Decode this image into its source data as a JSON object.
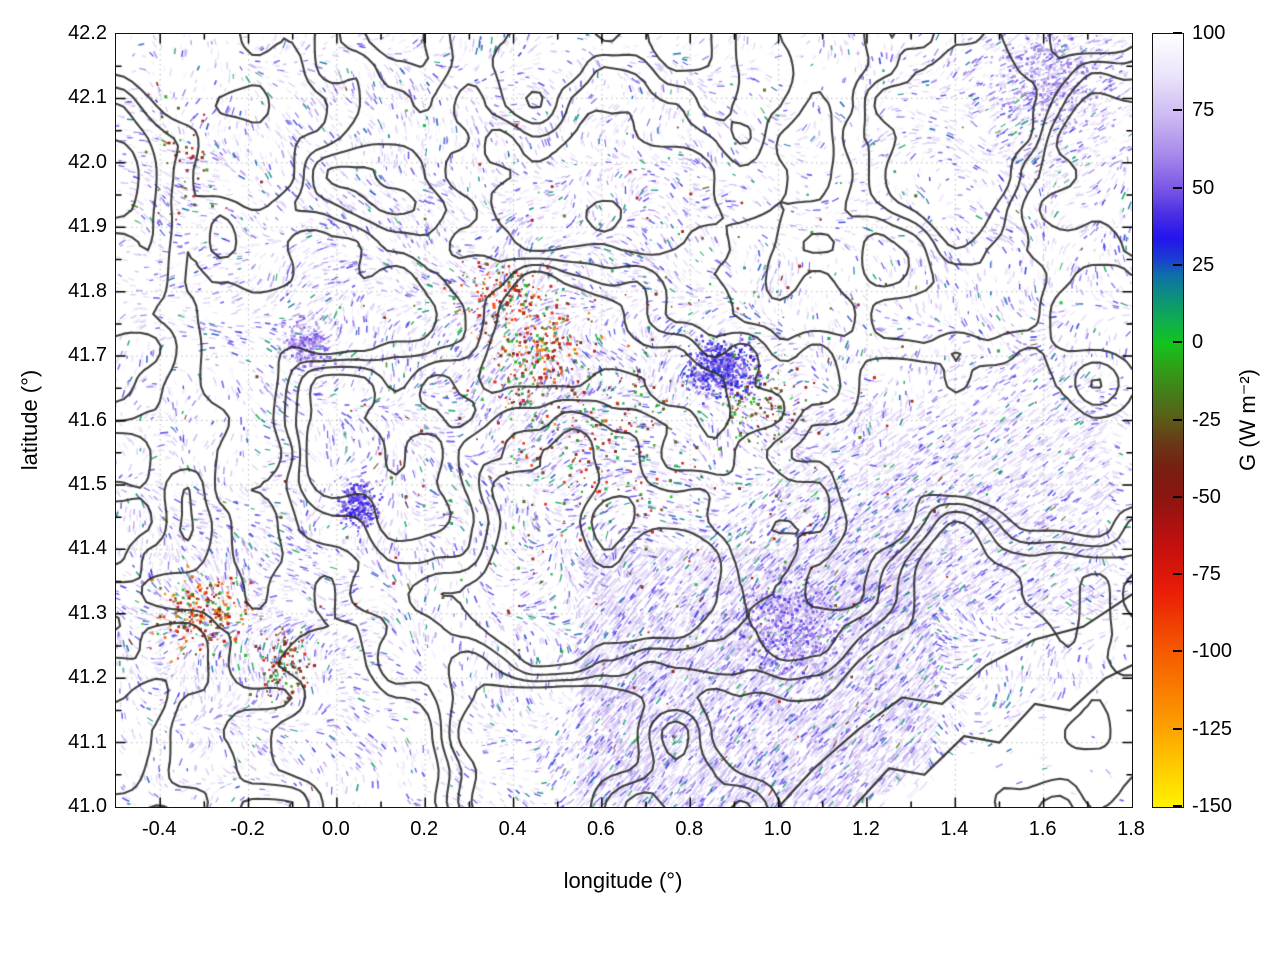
{
  "chart_data": {
    "type": "heatmap",
    "title": "",
    "xlabel": "longitude (°)",
    "ylabel": "latitude (°)",
    "x_range": [
      -0.5,
      1.8
    ],
    "y_range": [
      41.0,
      42.2
    ],
    "x_ticks": [
      -0.4,
      -0.2,
      0.0,
      0.2,
      0.4,
      0.6,
      0.8,
      1.0,
      1.2,
      1.4,
      1.6,
      1.8
    ],
    "x_tick_labels": [
      "-0.4",
      "-0.2",
      "0.0",
      "0.2",
      "0.4",
      "0.6",
      "0.8",
      "1.0",
      "1.2",
      "1.4",
      "1.6",
      "1.8"
    ],
    "y_ticks": [
      41.0,
      41.1,
      41.2,
      41.3,
      41.4,
      41.5,
      41.6,
      41.7,
      41.8,
      41.9,
      42.0,
      42.1,
      42.2
    ],
    "y_tick_labels": [
      "41.0",
      "41.1",
      "41.2",
      "41.3",
      "41.4",
      "41.5",
      "41.6",
      "41.7",
      "41.8",
      "41.9",
      "42.0",
      "42.1",
      "42.2"
    ],
    "grid": true,
    "colorbar": {
      "label": "G (W m⁻²)",
      "range": [
        -150,
        100
      ],
      "ticks": [
        100,
        75,
        50,
        25,
        0,
        -25,
        -50,
        -75,
        -100,
        -125,
        -150
      ],
      "tick_labels": [
        "100",
        "75",
        "50",
        "25",
        "0",
        "-25",
        "-50",
        "-75",
        "-100",
        "-125",
        "-150"
      ],
      "palette": [
        [
          100,
          "#ffffff"
        ],
        [
          86,
          "#eae3fa"
        ],
        [
          72,
          "#c9b4f2"
        ],
        [
          60,
          "#a385ea"
        ],
        [
          50,
          "#7a57e6"
        ],
        [
          42,
          "#4c30e2"
        ],
        [
          34,
          "#2413ee"
        ],
        [
          27,
          "#1b3fd0"
        ],
        [
          22,
          "#0f6fa8"
        ],
        [
          15,
          "#0d8f7c"
        ],
        [
          7,
          "#0fae4e"
        ],
        [
          0,
          "#12c41f"
        ],
        [
          -8,
          "#2f9f17"
        ],
        [
          -18,
          "#49761a"
        ],
        [
          -24,
          "#595f16"
        ],
        [
          -32,
          "#693a18"
        ],
        [
          -40,
          "#762012"
        ],
        [
          -50,
          "#8c1511"
        ],
        [
          -65,
          "#c20f0f"
        ],
        [
          -80,
          "#ea1c07"
        ],
        [
          -100,
          "#f55b00"
        ],
        [
          -120,
          "#fc9300"
        ],
        [
          -135,
          "#ffc400"
        ],
        [
          -150,
          "#fff200"
        ]
      ]
    },
    "field": {
      "background_value": 100,
      "description": "Mostly near-white field (G ≈ 100 W m⁻²) with streaky purple/blue speckles (25–90 W m⁻²), dense diagonal fringe texture in the south-east, sparse extreme negative spots (green/red/orange, down to ≈ -130 W m⁻²) in clusters, overlaid with dark terrain contour lines; white wedge in the bottom-right corner.",
      "seed": 77,
      "speckle_attempts": 42000,
      "contour_levels": [
        0.4,
        0.48,
        0.56,
        0.64
      ],
      "contour_scale": 140,
      "density_clusters": [
        {
          "cx": 0.95,
          "cy": 41.2,
          "rx": 0.38,
          "ry": 0.2,
          "strength": 0.85,
          "angle": -0.85
        },
        {
          "cx": 1.12,
          "cy": 41.38,
          "rx": 0.3,
          "ry": 0.16,
          "strength": 0.6,
          "angle": -0.7
        },
        {
          "cx": 0.5,
          "cy": 41.65,
          "rx": 0.4,
          "ry": 0.28,
          "strength": 0.45,
          "angle": null
        },
        {
          "cx": -0.25,
          "cy": 41.3,
          "rx": 0.28,
          "ry": 0.17,
          "strength": 0.55,
          "angle": null
        },
        {
          "cx": 1.5,
          "cy": 41.5,
          "rx": 0.35,
          "ry": 0.3,
          "strength": 0.4,
          "angle": -0.6
        },
        {
          "cx": 1.65,
          "cy": 42.12,
          "rx": 0.22,
          "ry": 0.14,
          "strength": 0.7,
          "angle": -0.5
        },
        {
          "cx": 0.1,
          "cy": 41.9,
          "rx": 0.5,
          "ry": 0.35,
          "strength": 0.3,
          "angle": null
        },
        {
          "cx": 0.78,
          "cy": 41.08,
          "rx": 0.3,
          "ry": 0.12,
          "strength": 0.8,
          "angle": -0.9
        }
      ],
      "spots": [
        {
          "cx": 0.45,
          "cy": 41.7,
          "rx": 0.17,
          "ry": 0.14,
          "count": 260,
          "vmin": -120,
          "vmax": 10
        },
        {
          "cx": 0.6,
          "cy": 41.57,
          "rx": 0.28,
          "ry": 0.18,
          "count": 150,
          "vmin": -95,
          "vmax": 15
        },
        {
          "cx": 0.38,
          "cy": 41.8,
          "rx": 0.15,
          "ry": 0.07,
          "count": 130,
          "vmin": -110,
          "vmax": 5
        },
        {
          "cx": -0.3,
          "cy": 41.3,
          "rx": 0.16,
          "ry": 0.09,
          "count": 240,
          "vmin": -130,
          "vmax": 5
        },
        {
          "cx": -0.12,
          "cy": 41.22,
          "rx": 0.1,
          "ry": 0.08,
          "count": 110,
          "vmin": -80,
          "vmax": 10
        },
        {
          "cx": 0.95,
          "cy": 41.63,
          "rx": 0.13,
          "ry": 0.09,
          "count": 110,
          "vmin": -60,
          "vmax": 12
        },
        {
          "cx": -0.35,
          "cy": 42.0,
          "rx": 0.14,
          "ry": 0.13,
          "count": 45,
          "vmin": -80,
          "vmax": 10
        },
        {
          "cx": 0.65,
          "cy": 41.6,
          "rx": 1.15,
          "ry": 0.62,
          "count": 330,
          "vmin": -70,
          "vmax": 18
        },
        {
          "cx": 0.87,
          "cy": 41.68,
          "rx": 0.11,
          "ry": 0.065,
          "count": 520,
          "vmin": 25,
          "vmax": 62
        },
        {
          "cx": 0.05,
          "cy": 41.47,
          "rx": 0.065,
          "ry": 0.05,
          "count": 280,
          "vmin": 30,
          "vmax": 65
        },
        {
          "cx": -0.07,
          "cy": 41.72,
          "rx": 0.08,
          "ry": 0.055,
          "count": 230,
          "vmin": 45,
          "vmax": 75
        },
        {
          "cx": 1.02,
          "cy": 41.28,
          "rx": 0.17,
          "ry": 0.11,
          "count": 480,
          "vmin": 40,
          "vmax": 75
        },
        {
          "cx": 1.62,
          "cy": 42.13,
          "rx": 0.19,
          "ry": 0.11,
          "count": 380,
          "vmin": 50,
          "vmax": 80
        }
      ],
      "streak_regions": [
        {
          "lon0": 0.55,
          "lon1": 1.35,
          "lat0": 41.0,
          "lat1": 41.4,
          "angle": -0.85,
          "count": 2600,
          "vmin": 55,
          "vmax": 86,
          "len": 11
        },
        {
          "lon0": 1.0,
          "lon1": 1.75,
          "lat0": 41.3,
          "lat1": 41.62,
          "angle": -0.6,
          "count": 1300,
          "vmin": 60,
          "vmax": 88,
          "len": 9
        }
      ],
      "white_wedge": {
        "lon_start": 1.18,
        "slope": 0.37,
        "skip": 0.92
      },
      "manual_contours": [
        [
          [
            1.17,
            41.0
          ],
          [
            1.25,
            41.06
          ],
          [
            1.33,
            41.05
          ],
          [
            1.42,
            41.11
          ],
          [
            1.5,
            41.1
          ],
          [
            1.58,
            41.16
          ],
          [
            1.66,
            41.15
          ],
          [
            1.74,
            41.2
          ],
          [
            1.8,
            41.22
          ]
        ],
        [
          [
            1.0,
            41.0
          ],
          [
            1.08,
            41.06
          ],
          [
            1.18,
            41.12
          ],
          [
            1.28,
            41.17
          ],
          [
            1.37,
            41.16
          ],
          [
            1.47,
            41.22
          ],
          [
            1.58,
            41.26
          ],
          [
            1.69,
            41.28
          ],
          [
            1.8,
            41.33
          ]
        ]
      ]
    }
  }
}
